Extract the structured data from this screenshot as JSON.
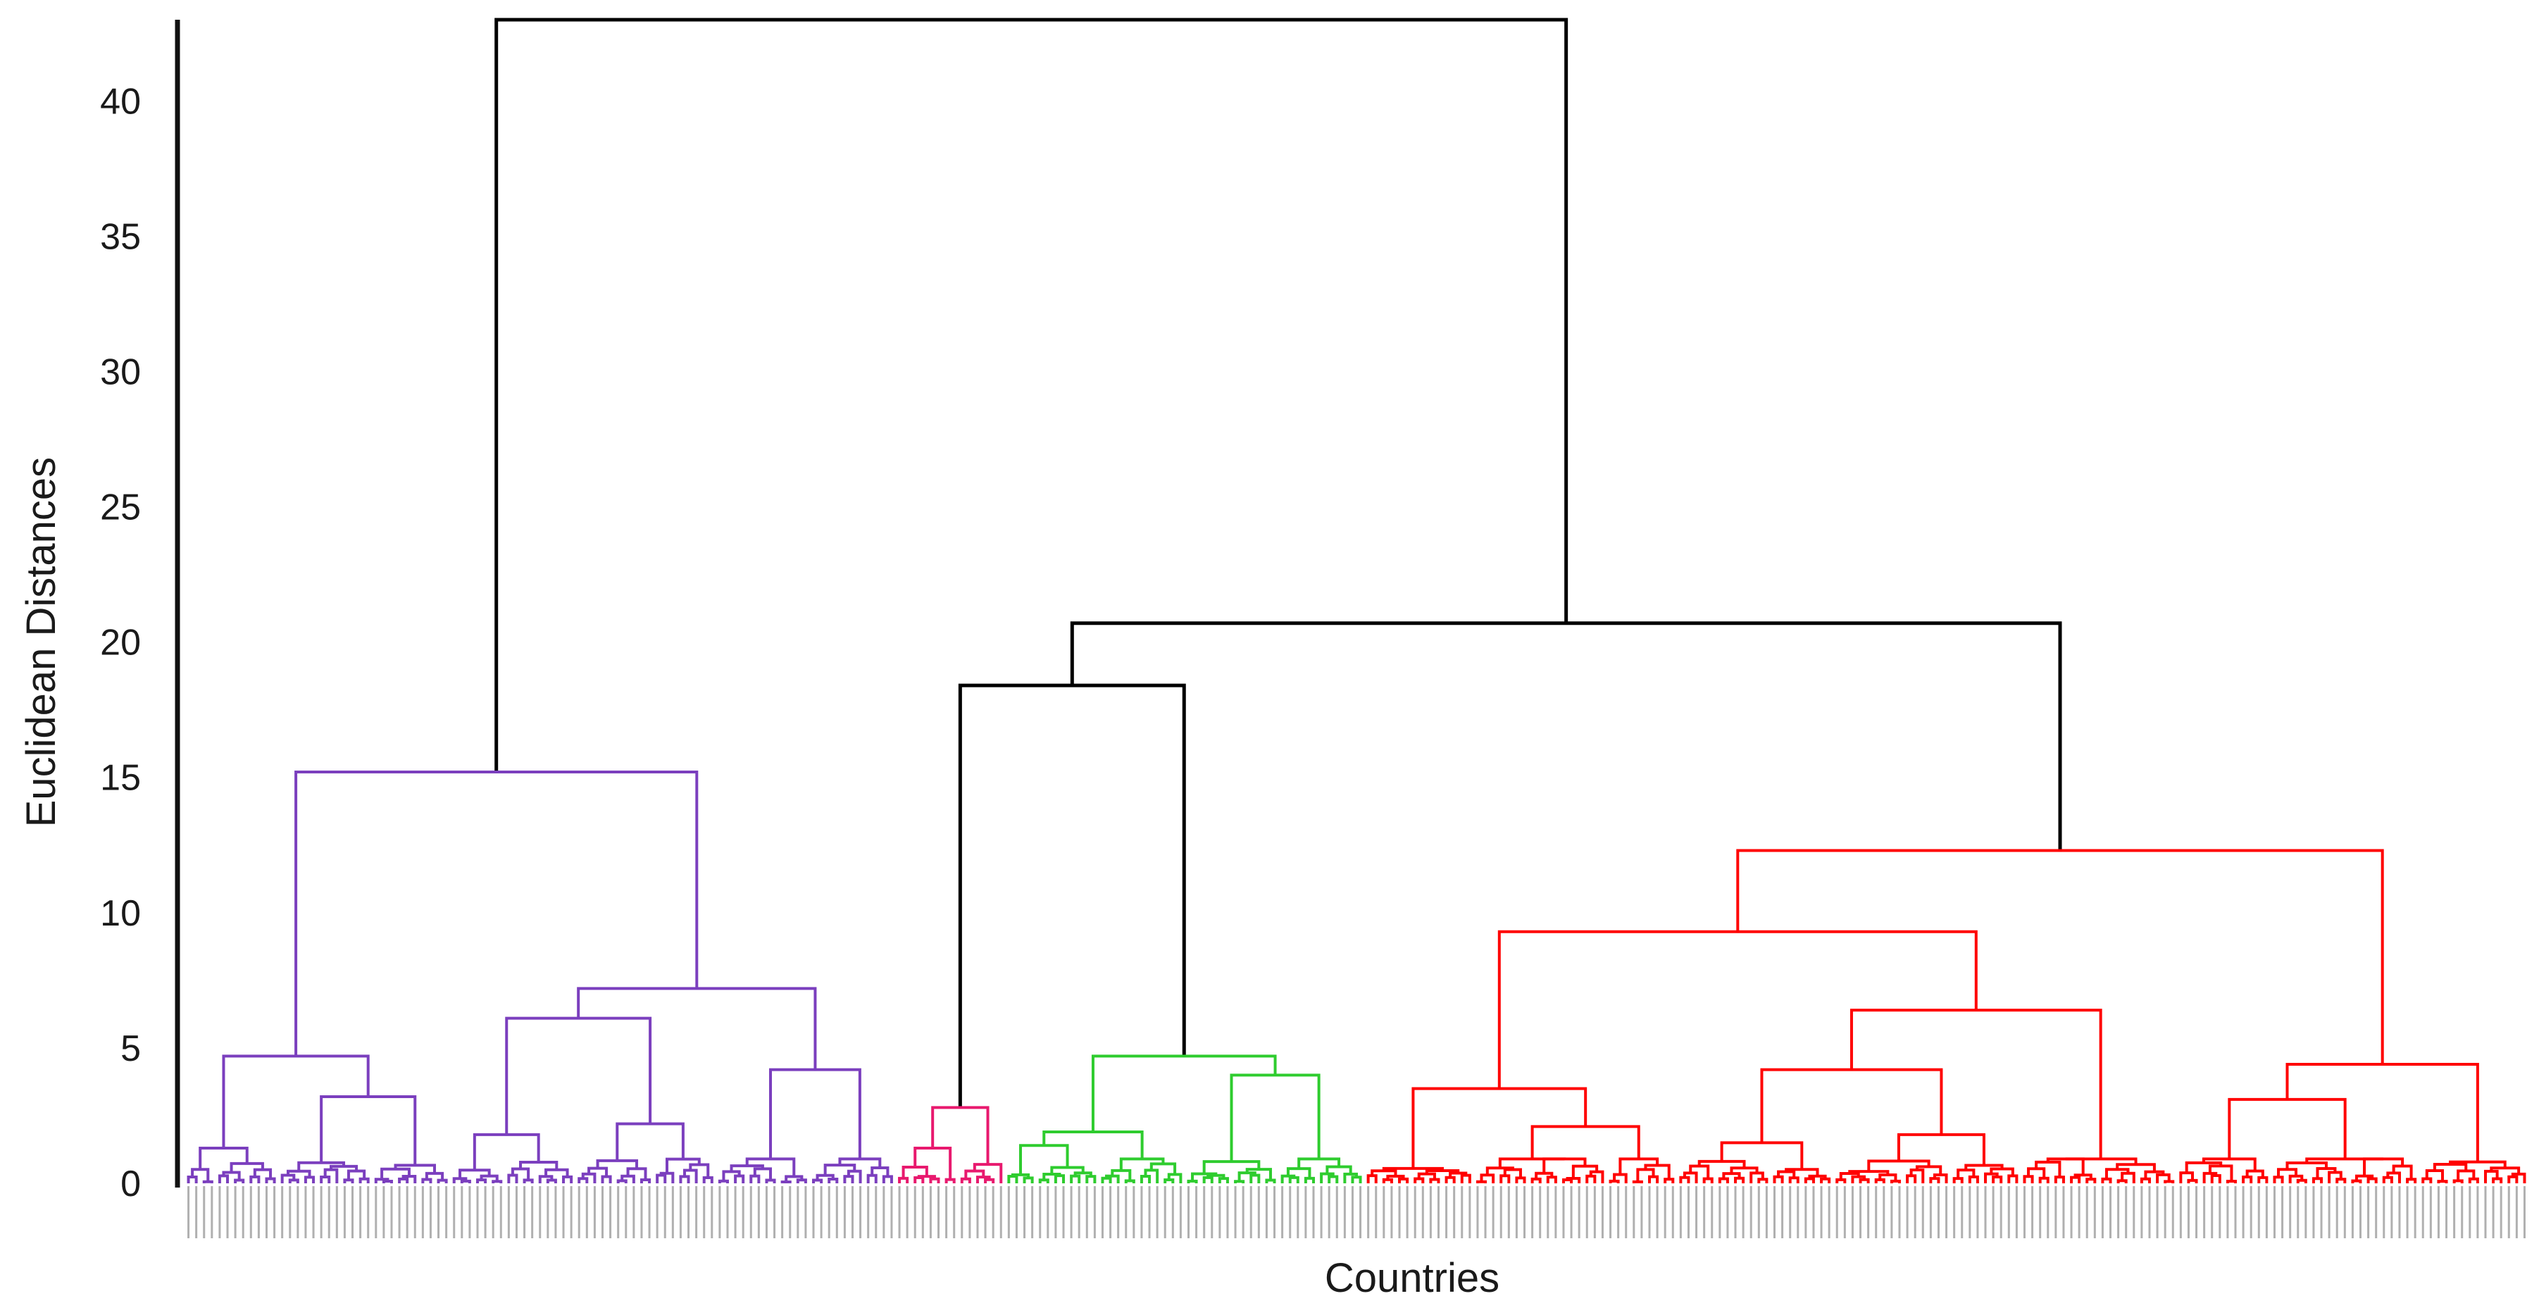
{
  "chart_data": {
    "type": "dendrogram",
    "xlabel": "Countries",
    "ylabel": "Euclidean Distances",
    "ylim": [
      0,
      43
    ],
    "yticks": [
      0,
      5,
      10,
      15,
      20,
      25,
      30,
      35,
      40
    ],
    "grid": false,
    "root_height": 43,
    "merges": [
      {
        "clusters": [
          "purple cluster",
          "pink+green+red"
        ],
        "height": 43
      },
      {
        "clusters": [
          "pink+green",
          "red cluster"
        ],
        "height": 20.7
      },
      {
        "clusters": [
          "pink cluster",
          "green cluster"
        ],
        "height": 18.4
      },
      {
        "clusters": [
          "purple subclusters"
        ],
        "height": 15.2
      },
      {
        "clusters": [
          "red subclusters"
        ],
        "height": 12.3
      }
    ],
    "clusters": [
      {
        "color": "#7b3fbe",
        "leaves": 91,
        "top_height": 15.2,
        "internal": [
          7.2,
          6.1,
          4.7,
          4.2,
          3.2,
          2.2,
          1.8,
          1.3
        ]
      },
      {
        "color": "#e8196e",
        "leaves": 14,
        "top_height": 2.8,
        "internal": [
          1.3,
          0.7,
          0.6
        ]
      },
      {
        "color": "#2ecc2e",
        "leaves": 46,
        "top_height": 4.7,
        "internal": [
          4.0,
          1.9,
          1.4,
          0.9
        ]
      },
      {
        "color": "#ff0000",
        "leaves": 149,
        "top_height": 12.3,
        "internal": [
          9.3,
          6.4,
          4.4,
          4.2,
          3.5,
          3.1,
          2.1,
          1.8,
          1.5
        ]
      }
    ],
    "leaf_labels_legible": false
  }
}
